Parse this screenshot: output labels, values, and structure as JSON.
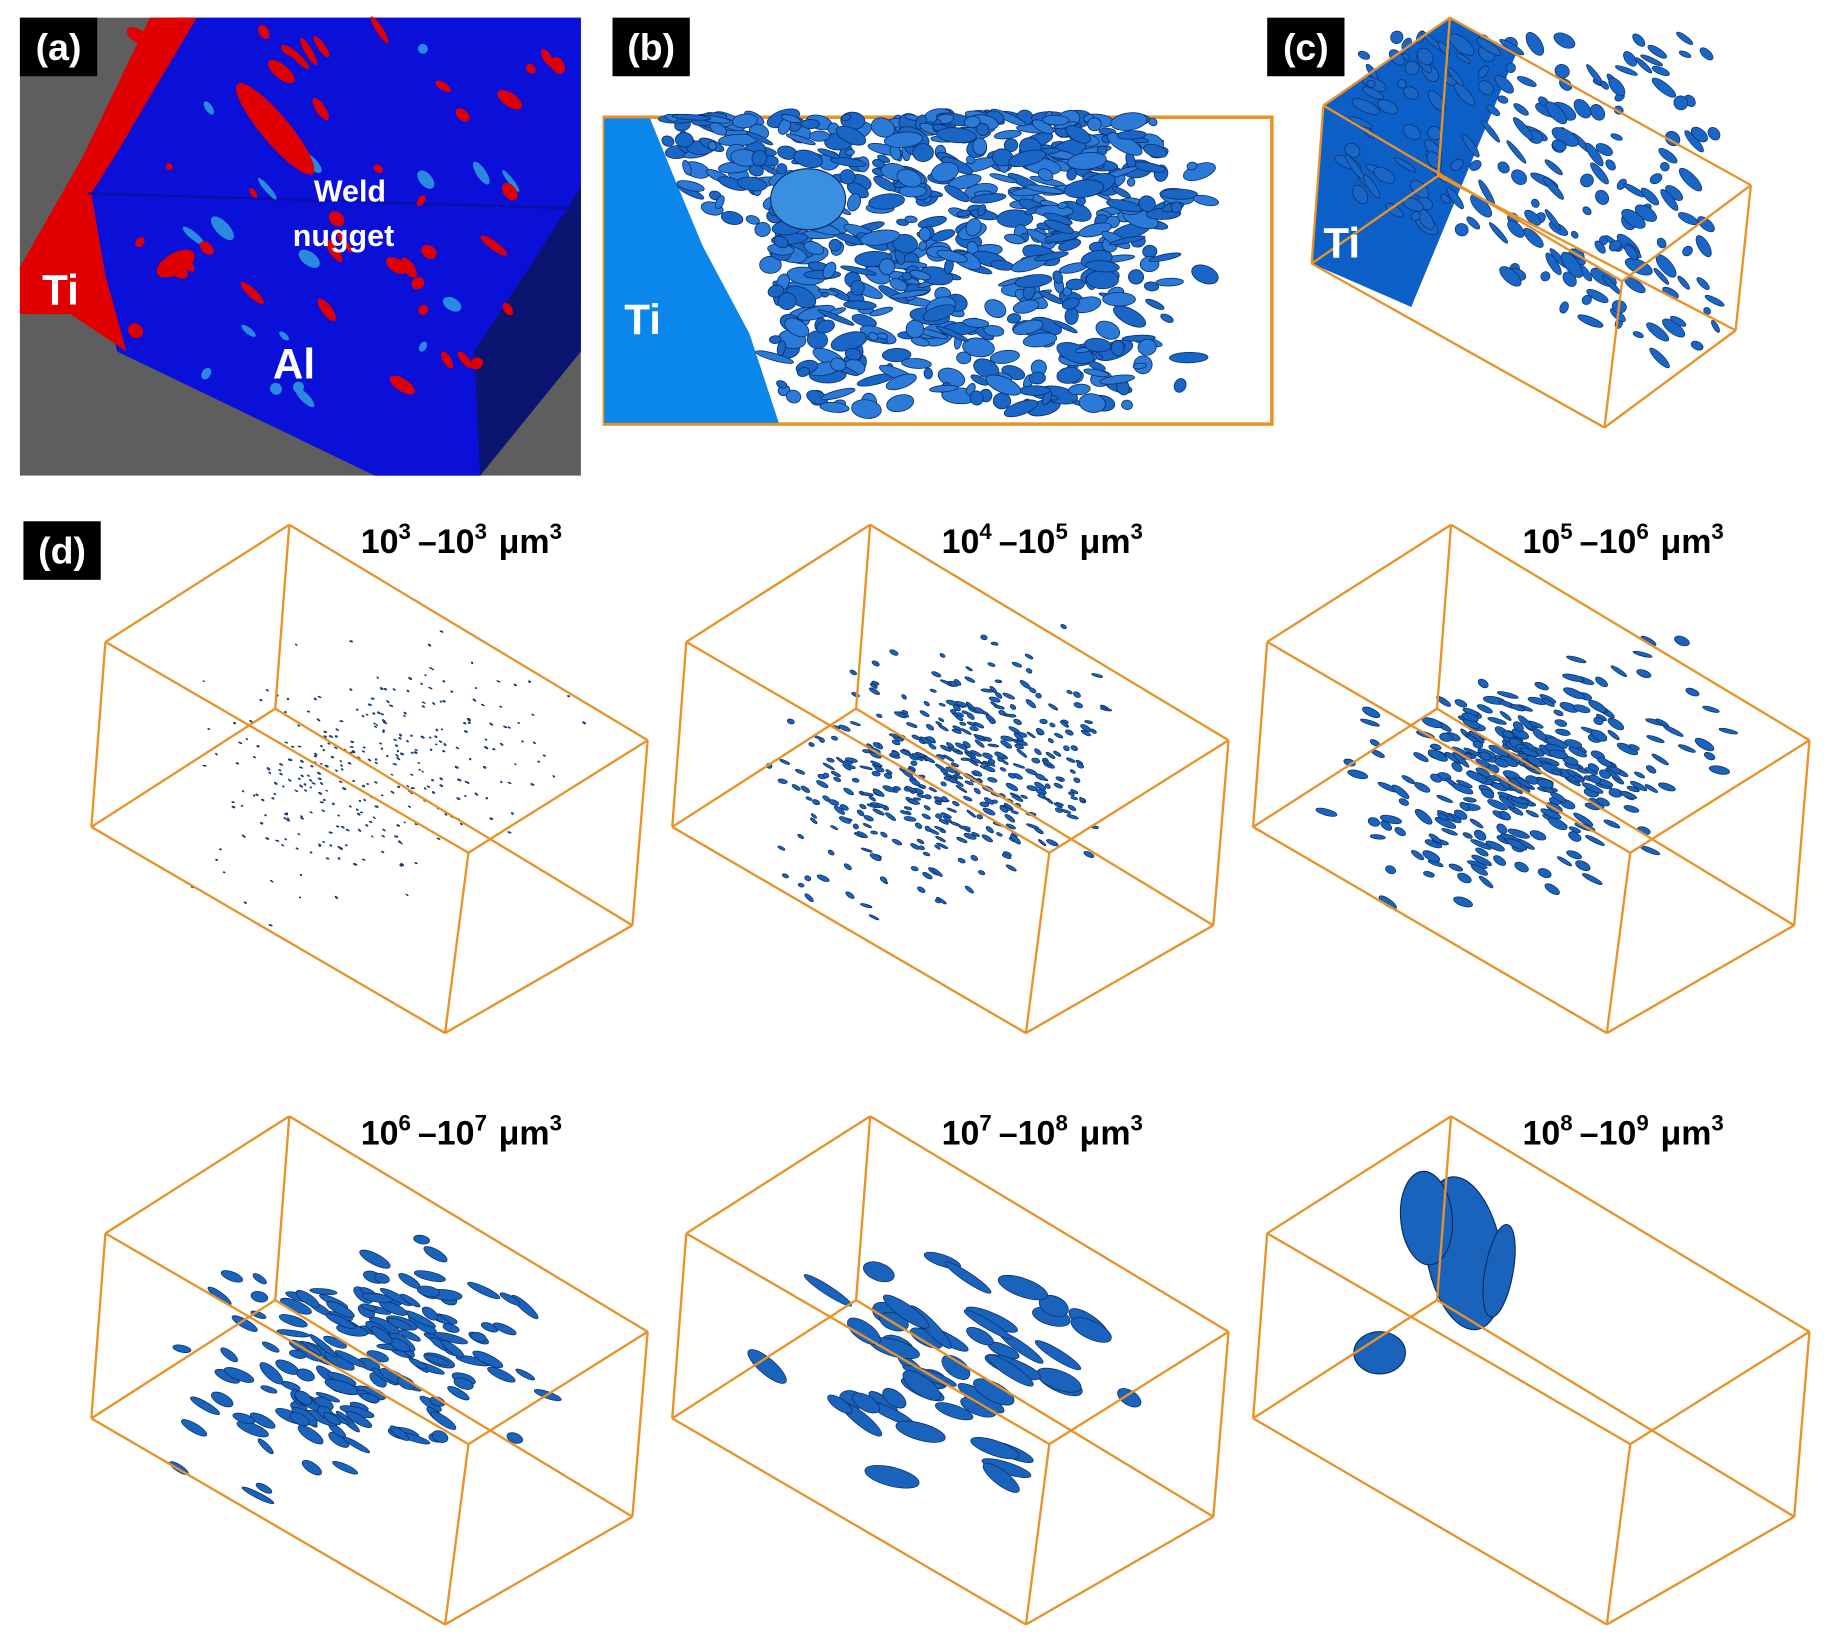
{
  "panels": {
    "a": {
      "badge": "(a)",
      "ti": "Ti",
      "weld": "Weld",
      "nugget": "nugget",
      "al": "Al"
    },
    "b": {
      "badge": "(b)",
      "ti": "Ti"
    },
    "c": {
      "badge": "(c)",
      "ti": "Ti"
    },
    "d": {
      "badge": "(d)",
      "ranges": [
        {
          "from": "10",
          "from_exp": "3",
          "dash": "–",
          "to": "10",
          "to_exp": "3",
          "unit": "μm",
          "unit_exp": "3"
        },
        {
          "from": "10",
          "from_exp": "4",
          "dash": "–",
          "to": "10",
          "to_exp": "5",
          "unit": "μm",
          "unit_exp": "3"
        },
        {
          "from": "10",
          "from_exp": "5",
          "dash": "–",
          "to": "10",
          "to_exp": "6",
          "unit": "μm",
          "unit_exp": "3"
        },
        {
          "from": "10",
          "from_exp": "6",
          "dash": "–",
          "to": "10",
          "to_exp": "7",
          "unit": "μm",
          "unit_exp": "3"
        },
        {
          "from": "10",
          "from_exp": "7",
          "dash": "–",
          "to": "10",
          "to_exp": "8",
          "unit": "μm",
          "unit_exp": "3"
        },
        {
          "from": "10",
          "from_exp": "8",
          "dash": "–",
          "to": "10",
          "to_exp": "9",
          "unit": "μm",
          "unit_exp": "3"
        }
      ]
    }
  }
}
